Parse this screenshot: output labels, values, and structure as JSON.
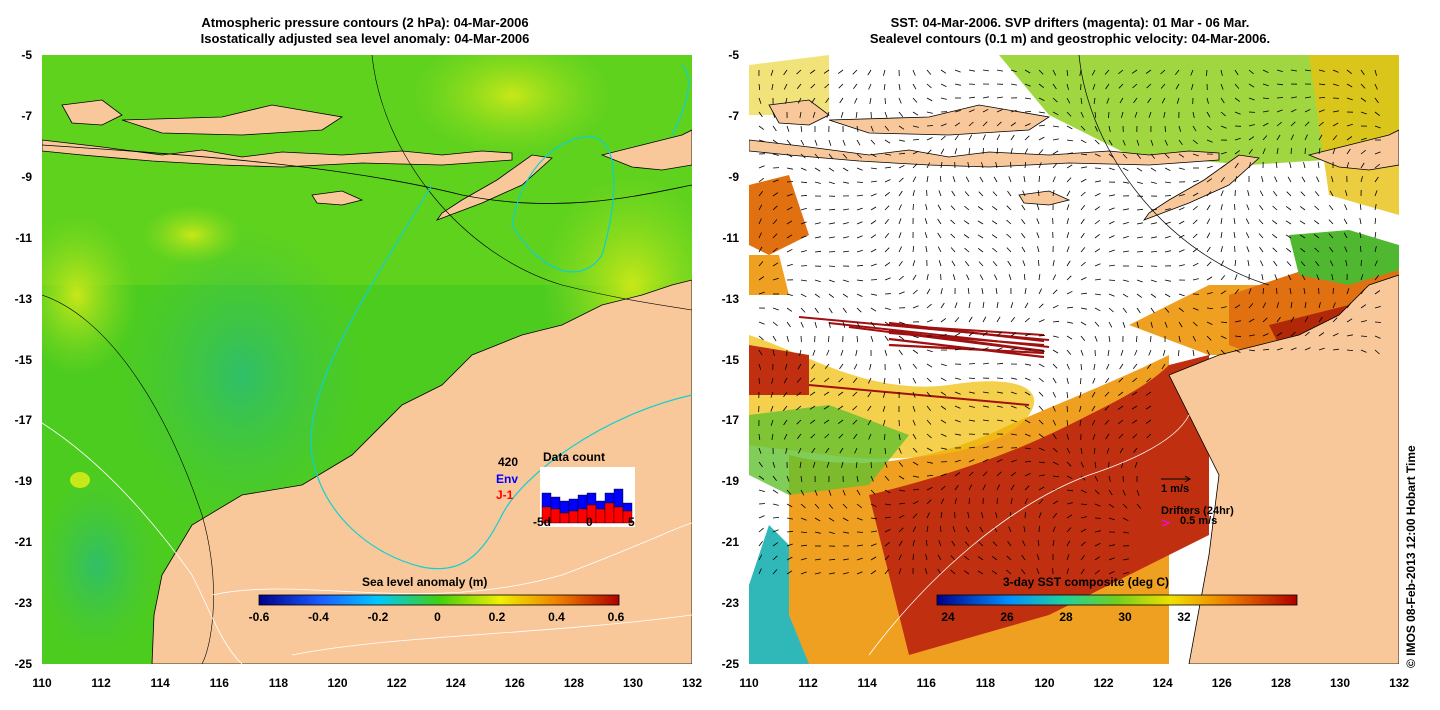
{
  "left_panel": {
    "title_line1": "Atmospheric pressure contours (2 hPa): 04-Mar-2006",
    "title_line2": "Isostatically adjusted sea level anomaly: 04-Mar-2006",
    "colorbar_title": "Sea level anomaly (m)",
    "colorbar_ticks": [
      "-0.6",
      "-0.4",
      "-0.2",
      "0",
      "0.2",
      "0.4",
      "0.6"
    ],
    "data_count": {
      "title": "Data count",
      "total": "420",
      "env_label": "Env",
      "j1_label": "J-1",
      "x_ticks": [
        "-5d",
        "0",
        "5"
      ],
      "env_color": "#0000ff",
      "j1_color": "#ff0000"
    }
  },
  "right_panel": {
    "title_line1": "SST: 04-Mar-2006. SVP drifters (magenta): 01 Mar - 06 Mar.",
    "title_line2": "Sealevel contours (0.1 m) and geostrophic velocity: 04-Mar-2006.",
    "colorbar_title": "3-day SST composite (deg C)",
    "colorbar_ticks": [
      "24",
      "26",
      "28",
      "30",
      "32"
    ],
    "velocity_scale_label": "1 m/s",
    "drifters_label": "Drifters (24hr)",
    "drifters_scale": "0.5 m/s",
    "drifter_color": "#ff00ff"
  },
  "axes": {
    "y_ticks": [
      "-5",
      "-7",
      "-9",
      "-11",
      "-13",
      "-15",
      "-17",
      "-19",
      "-21",
      "-23",
      "-25"
    ],
    "x_ticks": [
      "110",
      "112",
      "114",
      "116",
      "118",
      "120",
      "122",
      "124",
      "126",
      "128",
      "130",
      "132"
    ]
  },
  "colors": {
    "land": "#f9c89a",
    "sea_green": "#4dcc20",
    "no_data": "#ffffff"
  },
  "credit": "© IMOS 08-Feb-2013 12:00 Hobart Time"
}
